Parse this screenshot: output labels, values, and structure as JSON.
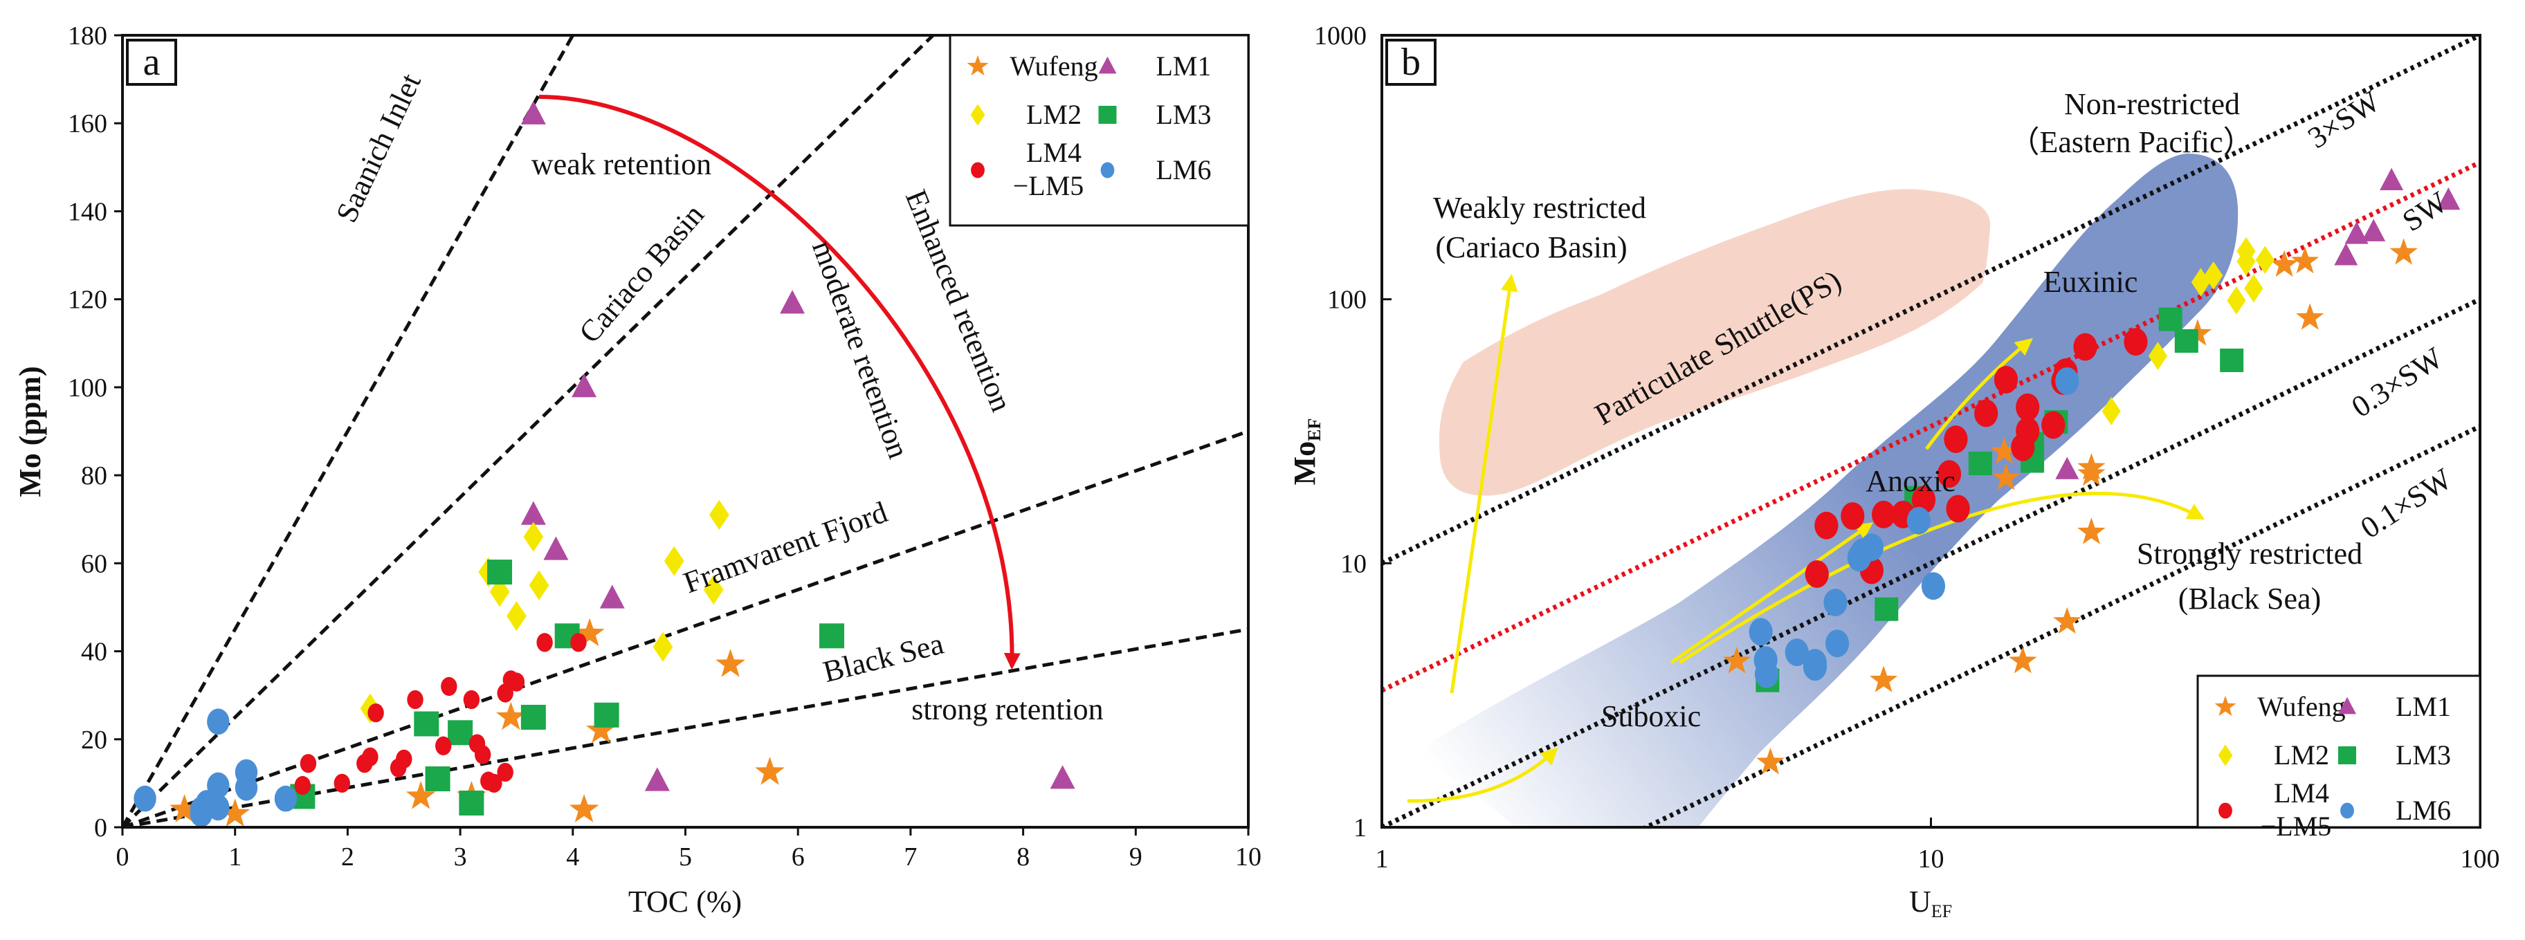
{
  "colors": {
    "Wufeng": "#f28a1e",
    "LM1": "#b04aa0",
    "LM2": "#f5e800",
    "LM3": "#1aa84a",
    "LM4-LM5": "#e8101a",
    "LM6": "#4a8fd6",
    "sw_line": "#e8101a",
    "arc": "#e8101a",
    "arrow": "#f7ea00",
    "pink_region": "#f6d5c8",
    "blue_region": "#7d94c9"
  },
  "legend": {
    "entries": [
      {
        "key": "Wufeng",
        "label": "Wufeng",
        "marker": "star"
      },
      {
        "key": "LM1",
        "label": "LM1",
        "marker": "triangle"
      },
      {
        "key": "LM2",
        "label": "LM2",
        "marker": "diamond"
      },
      {
        "key": "LM3",
        "label": "LM3",
        "marker": "square"
      },
      {
        "key": "LM4-LM5",
        "label": "LM4",
        "label2": "−LM5",
        "marker": "circle"
      },
      {
        "key": "LM6",
        "label": "LM6",
        "marker": "circle"
      }
    ]
  },
  "chart_data": [
    {
      "panel": "a",
      "type": "scatter",
      "xlabel": "TOC (%)",
      "ylabel": "Mo (ppm)",
      "xlim": [
        0,
        10
      ],
      "ylim": [
        0,
        180
      ],
      "xticks": [
        0,
        1,
        2,
        3,
        4,
        5,
        6,
        7,
        8,
        9,
        10
      ],
      "yticks": [
        0,
        20,
        40,
        60,
        80,
        100,
        120,
        140,
        160,
        180
      ],
      "legend_position": "top-right",
      "reference_lines": [
        {
          "name": "Saanich Inlet",
          "slope": 45
        },
        {
          "name": "Cariaco Basin",
          "slope": 25
        },
        {
          "name": "Framvarent Fjord",
          "slope": 9
        },
        {
          "name": "Black Sea",
          "slope": 4.5
        }
      ],
      "annotations": {
        "saanich": "Saanich  Inlet",
        "cariaco": "Cariaco  Basin",
        "framvaren": "Framvarent  Fjord",
        "blacksea": "Black Sea",
        "weak": "weak retention",
        "moderate": "moderate retention",
        "enhanced": "Enhanced retention",
        "strong": "strong retention"
      },
      "arc": {
        "from": [
          3.7,
          166
        ],
        "to": [
          7.9,
          35
        ]
      },
      "series": [
        {
          "name": "Wufeng",
          "points": [
            [
              0.55,
              4
            ],
            [
              1.0,
              3
            ],
            [
              2.65,
              7
            ],
            [
              3.1,
              7
            ],
            [
              3.45,
              25
            ],
            [
              4.15,
              44
            ],
            [
              4.25,
              22
            ],
            [
              4.1,
              4
            ],
            [
              5.4,
              37
            ],
            [
              5.75,
              12.5
            ]
          ]
        },
        {
          "name": "LM1",
          "points": [
            [
              3.65,
              162
            ],
            [
              5.95,
              119
            ],
            [
              4.1,
              100
            ],
            [
              3.65,
              71
            ],
            [
              3.85,
              63
            ],
            [
              4.35,
              52
            ],
            [
              4.75,
              10.5
            ],
            [
              8.35,
              11
            ]
          ]
        },
        {
          "name": "LM2",
          "points": [
            [
              3.65,
              66
            ],
            [
              5.3,
              71
            ],
            [
              3.25,
              58
            ],
            [
              4.9,
              60.5
            ],
            [
              3.7,
              55
            ],
            [
              3.35,
              53.5
            ],
            [
              5.25,
              54
            ],
            [
              3.5,
              48
            ],
            [
              4.8,
              41
            ],
            [
              2.2,
              27
            ]
          ]
        },
        {
          "name": "LM3",
          "points": [
            [
              3.35,
              58
            ],
            [
              3.95,
              43.5
            ],
            [
              6.3,
              43.5
            ],
            [
              3.65,
              25
            ],
            [
              4.3,
              25.5
            ],
            [
              2.7,
              23.5
            ],
            [
              3.0,
              21.5
            ],
            [
              2.8,
              11
            ],
            [
              1.6,
              7
            ],
            [
              3.1,
              5.5
            ]
          ]
        },
        {
          "name": "LM4-LM5",
          "points": [
            [
              3.75,
              42
            ],
            [
              4.05,
              42
            ],
            [
              3.45,
              33.5
            ],
            [
              3.5,
              33
            ],
            [
              2.9,
              32
            ],
            [
              2.6,
              29
            ],
            [
              3.1,
              29
            ],
            [
              3.4,
              30.5
            ],
            [
              2.25,
              26
            ],
            [
              2.2,
              16
            ],
            [
              2.15,
              14.5
            ],
            [
              2.5,
              15.5
            ],
            [
              2.45,
              13.5
            ],
            [
              2.85,
              18.5
            ],
            [
              3.15,
              19
            ],
            [
              3.2,
              16.5
            ],
            [
              1.65,
              14.5
            ],
            [
              1.6,
              9.5
            ],
            [
              1.95,
              10
            ],
            [
              3.4,
              12.5
            ],
            [
              3.25,
              10.5
            ],
            [
              3.3,
              10
            ]
          ]
        },
        {
          "name": "LM6",
          "points": [
            [
              0.85,
              24
            ],
            [
              1.1,
              12.5
            ],
            [
              1.1,
              9
            ],
            [
              0.85,
              9.5
            ],
            [
              0.2,
              6.5
            ],
            [
              1.45,
              6.5
            ],
            [
              0.75,
              5.5
            ],
            [
              0.7,
              4
            ],
            [
              0.85,
              4.5
            ],
            [
              0.7,
              3
            ],
            [
              0.8,
              5
            ]
          ]
        }
      ]
    },
    {
      "panel": "b",
      "type": "scatter",
      "xlabel": "U",
      "xlabel_sub": "EF",
      "ylabel": "Mo",
      "ylabel_sub": "EF",
      "xscale": "log",
      "yscale": "log",
      "xlim": [
        1,
        100
      ],
      "ylim": [
        1,
        1000
      ],
      "xticks": [
        1,
        10,
        100
      ],
      "yticks": [
        1,
        10,
        100,
        1000
      ],
      "legend_position": "bottom-right",
      "reference_lines": [
        {
          "name": "3×SW",
          "ratio": 10
        },
        {
          "name": "SW",
          "ratio": 3.3
        },
        {
          "name": "0.3×SW",
          "ratio": 1
        },
        {
          "name": "0.1×SW",
          "ratio": 0.33
        }
      ],
      "annotations": {
        "nonrestricted": "Non-restricted",
        "eastern_pacific": "（Eastern Pacific）",
        "weakly": "Weakly restricted",
        "cariaco": "(Cariaco Basin)",
        "ps": "Particulate Shuttle(PS)",
        "euxinic": "Euxinic",
        "anoxic": "Anoxic",
        "suboxic": "Suboxic",
        "strongly": "Strongly restricted",
        "blacksea": "(Black Sea)"
      },
      "series": [
        {
          "name": "Wufeng",
          "points": [
            [
              4.43,
              4.25
            ],
            [
              8.2,
              3.6
            ],
            [
              5.1,
              1.76
            ],
            [
              14.7,
              4.25
            ],
            [
              17.7,
              6
            ],
            [
              19.6,
              13.1
            ],
            [
              19.6,
              21.8
            ],
            [
              19.6,
              23
            ],
            [
              13.6,
              26.4
            ],
            [
              13.7,
              21
            ],
            [
              30.6,
              74
            ],
            [
              44,
              135
            ],
            [
              48,
              139
            ],
            [
              49,
              85
            ],
            [
              72.6,
              150
            ]
          ]
        },
        {
          "name": "LM1",
          "points": [
            [
              17.7,
              22.6
            ],
            [
              57,
              146
            ],
            [
              59.6,
              176
            ],
            [
              64,
              180
            ],
            [
              69,
              281
            ],
            [
              87.6,
              237
            ]
          ]
        },
        {
          "name": "LM2",
          "points": [
            [
              31,
              116
            ],
            [
              32.7,
              123
            ],
            [
              37.5,
              152
            ],
            [
              37.5,
              139
            ],
            [
              40.6,
              141
            ],
            [
              38.7,
              110
            ],
            [
              36,
              99
            ],
            [
              25.9,
              61
            ],
            [
              21.3,
              37.7
            ]
          ]
        },
        {
          "name": "LM3",
          "points": [
            [
              27.3,
              84
            ],
            [
              29.2,
              69.5
            ],
            [
              35.3,
              58.7
            ],
            [
              16.9,
              34.3
            ],
            [
              15.3,
              28.3
            ],
            [
              15.3,
              24.4
            ],
            [
              12.3,
              23.9
            ],
            [
              9.4,
              17.7
            ],
            [
              8.3,
              6.7
            ],
            [
              5.04,
              3.6
            ]
          ]
        },
        {
          "name": "LM4-LM5",
          "points": [
            [
              19.1,
              66
            ],
            [
              23.6,
              69
            ],
            [
              17.6,
              53
            ],
            [
              17.4,
              49
            ],
            [
              13.7,
              49.6
            ],
            [
              15,
              39
            ],
            [
              12.6,
              37
            ],
            [
              15,
              31.7
            ],
            [
              16.7,
              33.4
            ],
            [
              14.7,
              27.5
            ],
            [
              11.1,
              29.5
            ],
            [
              10.8,
              21.8
            ],
            [
              9.7,
              17.4
            ],
            [
              11.2,
              16.1
            ],
            [
              8.2,
              15.3
            ],
            [
              8.9,
              15.3
            ],
            [
              7.2,
              15.1
            ],
            [
              6.45,
              13.9
            ],
            [
              6.2,
              9.1
            ],
            [
              7.8,
              9.4
            ]
          ]
        },
        {
          "name": "LM6",
          "points": [
            [
              17.7,
              49
            ],
            [
              9.5,
              14.5
            ],
            [
              7.5,
              11
            ],
            [
              7.8,
              11.5
            ],
            [
              7.4,
              10.5
            ],
            [
              10.1,
              8.2
            ],
            [
              6.7,
              7.1
            ],
            [
              6.75,
              4.97
            ],
            [
              4.9,
              5.5
            ],
            [
              5.0,
              4.3
            ],
            [
              5.02,
              3.8
            ],
            [
              5.7,
              4.6
            ],
            [
              6.15,
              4.2
            ],
            [
              6.15,
              4.05
            ]
          ]
        }
      ]
    }
  ]
}
